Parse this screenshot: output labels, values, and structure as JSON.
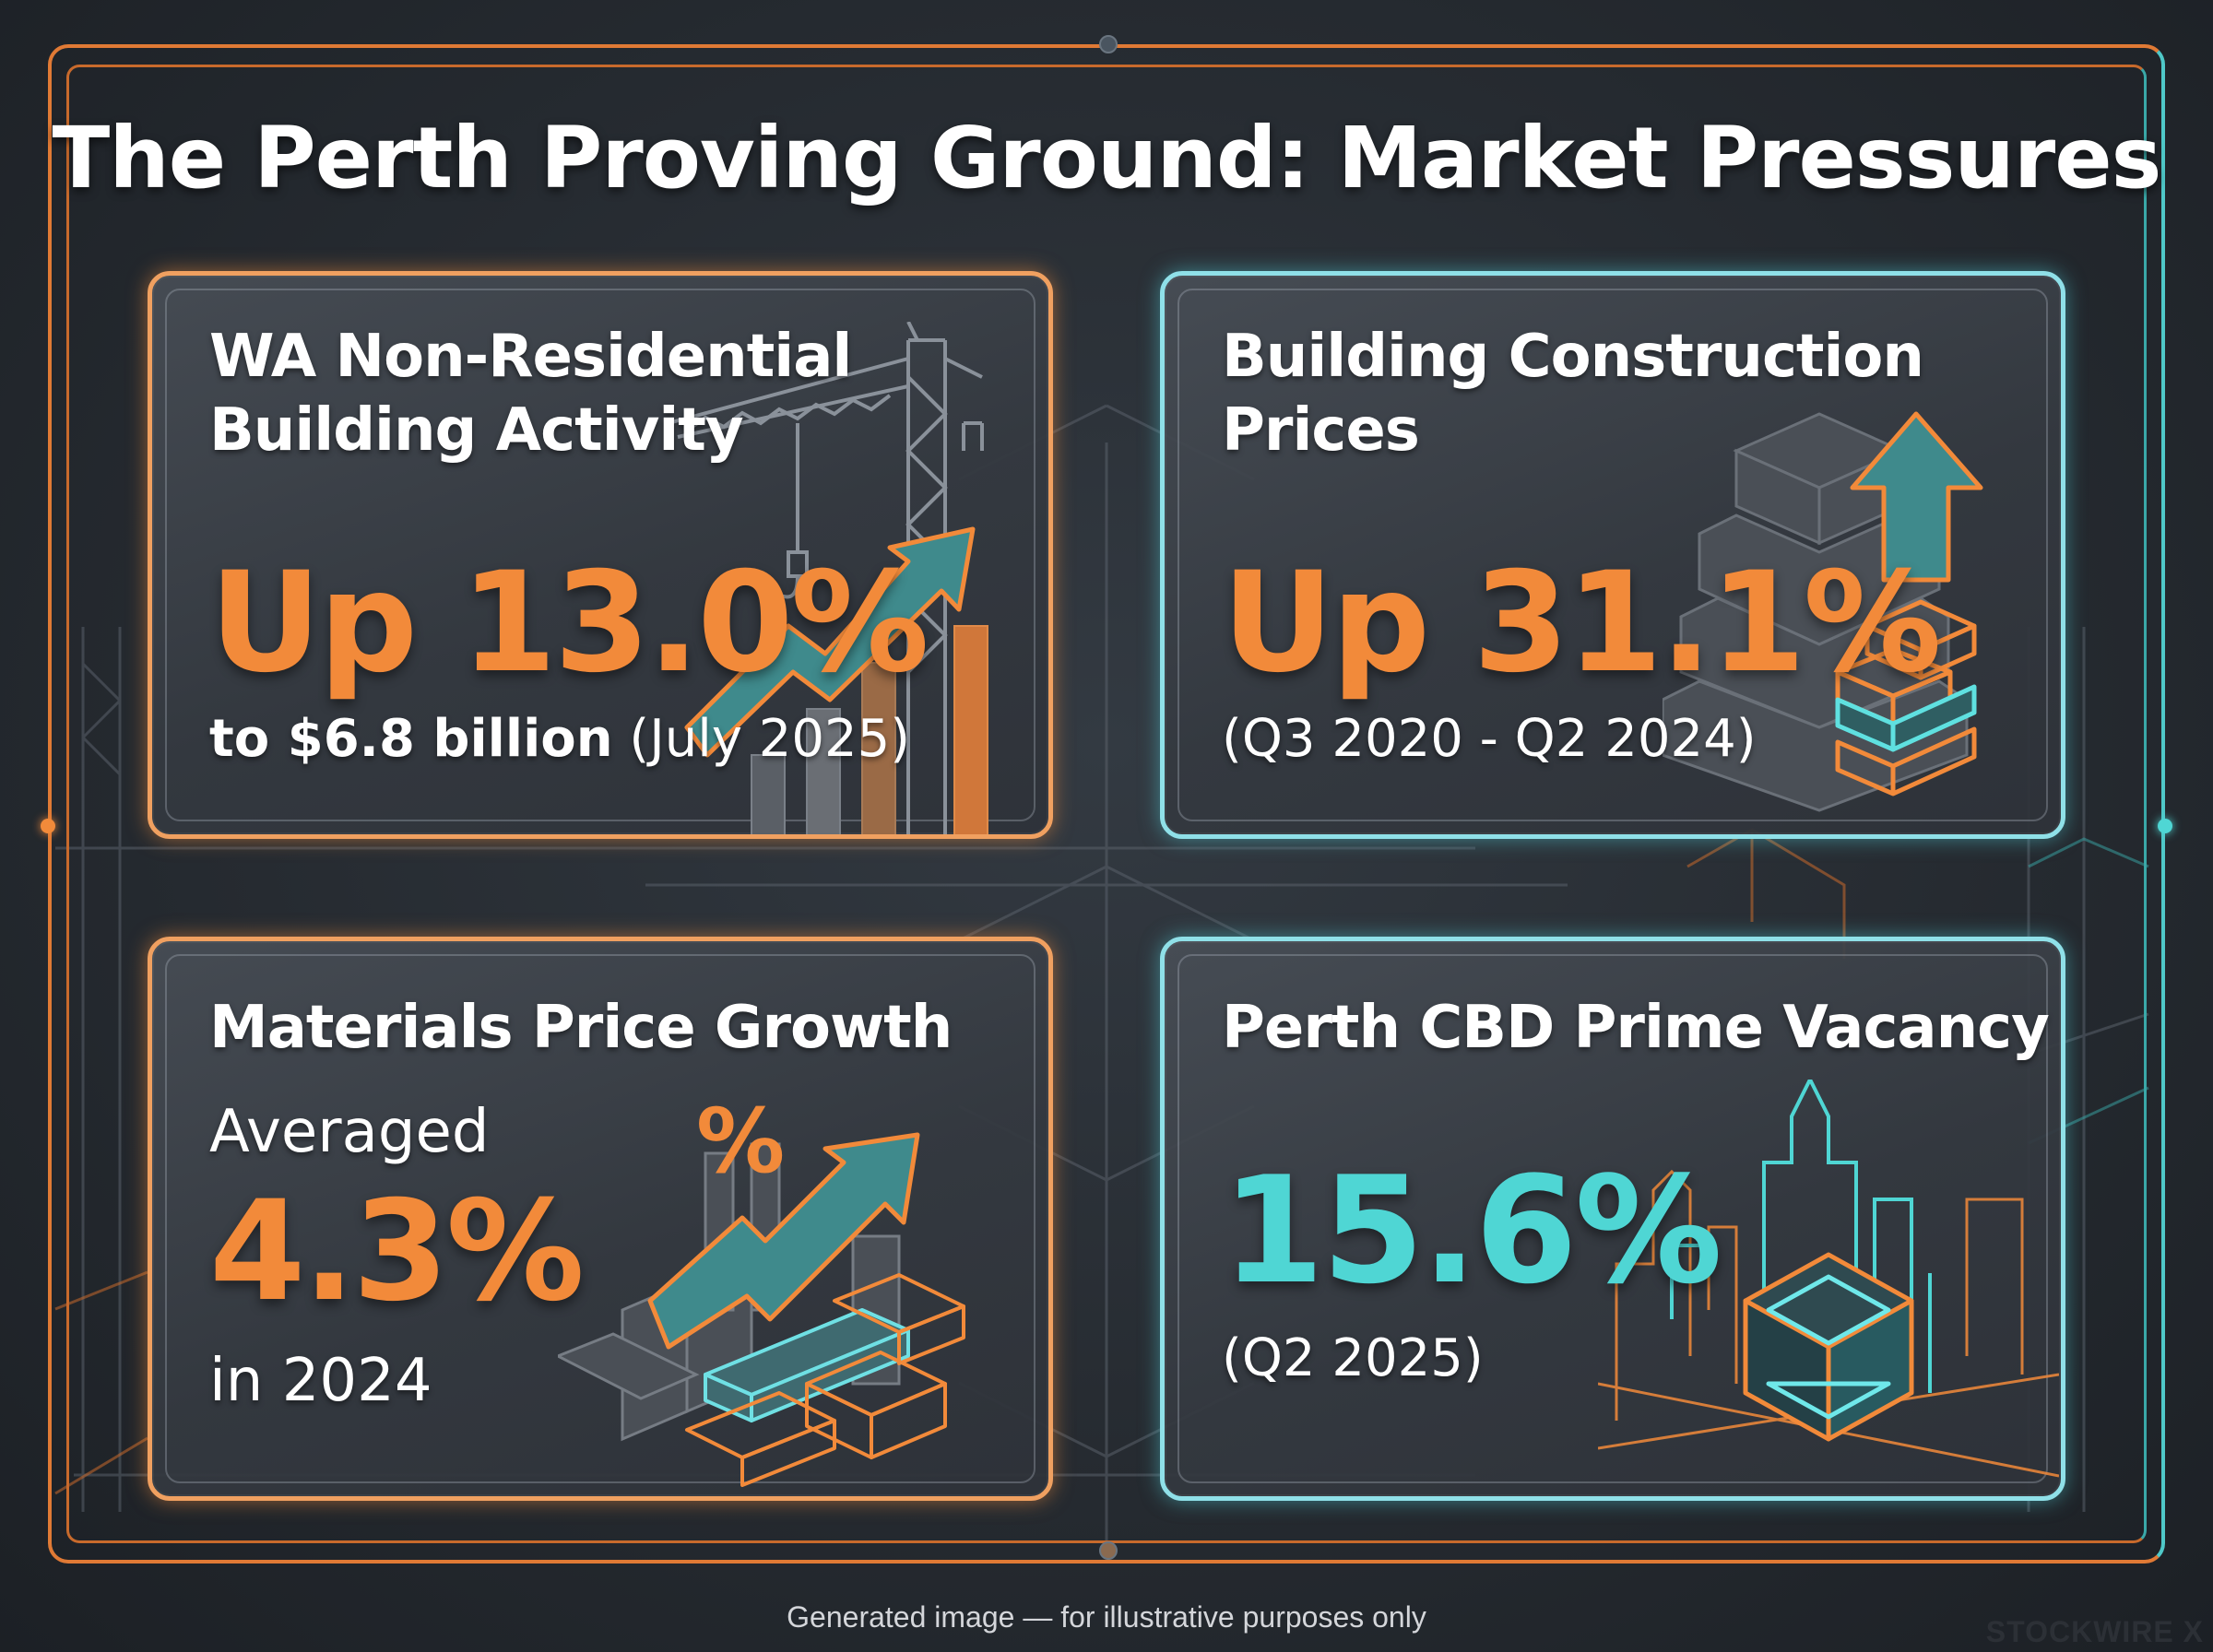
{
  "title": "The Perth Proving Ground: Market Pressures",
  "colors": {
    "orange": "#f28a3a",
    "teal": "#4fd6d4",
    "background": "#2b3037"
  },
  "cards": [
    {
      "title_line1": "WA Non-Residential",
      "title_line2": "Building Activity",
      "headline": "Up 13.0%",
      "detail_bold": "to $6.8 billion",
      "detail_rest": "(July 2025)",
      "icon": "crane-bar-chart-arrow-icon"
    },
    {
      "title_line1": "Building Construction",
      "title_line2": "Prices",
      "headline": "Up 31.1%",
      "detail": "(Q3 2020 - Q2 2024)",
      "icon": "stacked-blocks-up-arrow-icon"
    },
    {
      "title": "Materials Price Growth",
      "prefix": "Averaged",
      "headline": "4.3%",
      "suffix": "in 2024",
      "icon": "materials-percent-arrow-icon",
      "icon_text": "%"
    },
    {
      "title": "Perth CBD Prime Vacancy",
      "headline": "15.6%",
      "detail": "(Q2 2025)",
      "icon": "city-skyline-cube-icon"
    }
  ],
  "footer": "Generated image — for illustrative purposes only",
  "watermark": "STOCKWIRE X"
}
